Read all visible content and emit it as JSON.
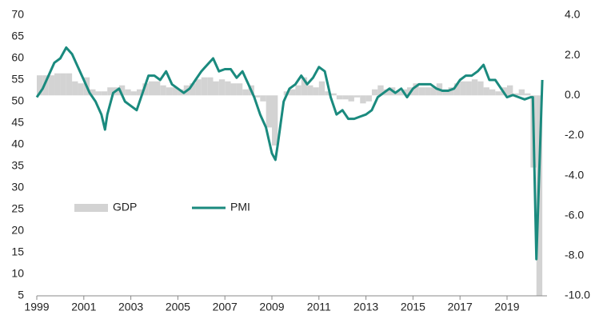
{
  "chart_data": {
    "type": "bar_line",
    "xlim": [
      1999,
      2020.7
    ],
    "xticks": [
      1999,
      2001,
      2003,
      2005,
      2007,
      2009,
      2011,
      2013,
      2015,
      2017,
      2019
    ],
    "ylim": [
      5,
      70
    ],
    "yticks": [
      5,
      10,
      15,
      20,
      25,
      30,
      35,
      40,
      45,
      50,
      55,
      60,
      65,
      70
    ],
    "y2lim": [
      -10,
      4
    ],
    "y2ticks": [
      {
        "value": -10,
        "label": "-10.0"
      },
      {
        "value": -8,
        "label": "-8.0"
      },
      {
        "value": -6,
        "label": "-6.0"
      },
      {
        "value": -4,
        "label": "-4.0"
      },
      {
        "value": -2,
        "label": "-2.0"
      },
      {
        "value": 0,
        "label": "0.0"
      },
      {
        "value": 2,
        "label": "2.0"
      },
      {
        "value": 4,
        "label": "4.0"
      }
    ],
    "legend": "center-left",
    "series": [
      {
        "name": "GDP",
        "type": "bar",
        "axis": "y2",
        "color": "#d3d3d3",
        "x": [
          1999,
          1999.25,
          1999.5,
          1999.75,
          2000,
          2000.25,
          2000.5,
          2000.75,
          2001,
          2001.25,
          2001.5,
          2001.75,
          2002,
          2002.25,
          2002.5,
          2002.75,
          2003,
          2003.25,
          2003.5,
          2003.75,
          2004,
          2004.25,
          2004.5,
          2004.75,
          2005,
          2005.25,
          2005.5,
          2005.75,
          2006,
          2006.25,
          2006.5,
          2006.75,
          2007,
          2007.25,
          2007.5,
          2007.75,
          2008,
          2008.25,
          2008.5,
          2008.75,
          2009,
          2009.25,
          2009.5,
          2009.75,
          2010,
          2010.25,
          2010.5,
          2010.75,
          2011,
          2011.25,
          2011.5,
          2011.75,
          2012,
          2012.25,
          2012.5,
          2012.75,
          2013,
          2013.25,
          2013.5,
          2013.75,
          2014,
          2014.25,
          2014.5,
          2014.75,
          2015,
          2015.25,
          2015.5,
          2015.75,
          2016,
          2016.25,
          2016.5,
          2016.75,
          2017,
          2017.25,
          2017.5,
          2017.75,
          2018,
          2018.25,
          2018.5,
          2018.75,
          2019,
          2019.25,
          2019.5,
          2019.75,
          2020,
          2020.25
        ],
        "values": [
          1.0,
          1.0,
          1.0,
          1.1,
          1.1,
          1.1,
          0.7,
          0.6,
          0.9,
          0.3,
          0.2,
          0.2,
          0.4,
          0.4,
          0.5,
          0.3,
          0.2,
          0.3,
          0.6,
          0.7,
          0.7,
          0.5,
          0.4,
          0.4,
          0.3,
          0.5,
          0.6,
          0.8,
          0.9,
          0.9,
          0.7,
          0.8,
          0.7,
          0.6,
          0.6,
          0.3,
          0.5,
          -0.1,
          -0.3,
          -1.6,
          -2.5,
          0,
          0.2,
          0.3,
          0.5,
          0.9,
          0.5,
          0.4,
          0.7,
          0.2,
          0.1,
          -0.2,
          -0.2,
          -0.3,
          -0.1,
          -0.4,
          -0.3,
          0.3,
          0.5,
          0.3,
          0.4,
          0.2,
          0.3,
          0.4,
          0.6,
          0.4,
          0.4,
          0.4,
          0.6,
          0.3,
          0.4,
          0.6,
          0.7,
          0.7,
          0.8,
          0.7,
          0.4,
          0.3,
          0.2,
          0.4,
          0.5,
          0.1,
          0.3,
          0.1,
          -3.6,
          -10
        ]
      },
      {
        "name": "PMI",
        "type": "line",
        "axis": "y",
        "color": "#1a8a7e",
        "x": [
          1999,
          1999.25,
          1999.5,
          1999.75,
          2000,
          2000.25,
          2000.5,
          2000.75,
          2001,
          2001.25,
          2001.5,
          2001.75,
          2001.9,
          2002,
          2002.25,
          2002.5,
          2002.75,
          2003,
          2003.25,
          2003.5,
          2003.75,
          2004,
          2004.25,
          2004.5,
          2004.75,
          2005,
          2005.25,
          2005.5,
          2005.75,
          2006,
          2006.25,
          2006.5,
          2006.75,
          2007,
          2007.25,
          2007.5,
          2007.75,
          2008,
          2008.25,
          2008.5,
          2008.75,
          2009,
          2009.15,
          2009.25,
          2009.5,
          2009.75,
          2010,
          2010.25,
          2010.5,
          2010.75,
          2011,
          2011.25,
          2011.5,
          2011.75,
          2012,
          2012.25,
          2012.5,
          2012.75,
          2013,
          2013.25,
          2013.5,
          2013.75,
          2014,
          2014.25,
          2014.5,
          2014.75,
          2015,
          2015.25,
          2015.5,
          2015.75,
          2016,
          2016.25,
          2016.5,
          2016.75,
          2017,
          2017.25,
          2017.5,
          2017.75,
          2018,
          2018.25,
          2018.5,
          2018.75,
          2019,
          2019.25,
          2019.5,
          2019.75,
          2020,
          2020.1,
          2020.25,
          2020.5
        ],
        "values": [
          51,
          53,
          56,
          59,
          60,
          62.5,
          61,
          58,
          55,
          52,
          50,
          47,
          43.5,
          47,
          52,
          53,
          50,
          49,
          48,
          52,
          56,
          56,
          55,
          57,
          54,
          53,
          52,
          53,
          55,
          57,
          58.5,
          60,
          57,
          57.5,
          57.5,
          55.5,
          57,
          54,
          51,
          47,
          44,
          38,
          36.5,
          40,
          50,
          53,
          54,
          56,
          54,
          55.5,
          58,
          57,
          51,
          47,
          48,
          46,
          46,
          46.5,
          47,
          48,
          51,
          52,
          53,
          52,
          53,
          51,
          53,
          54,
          54,
          54,
          53,
          52.5,
          52.5,
          53,
          55,
          56,
          56,
          57,
          58.5,
          55,
          55,
          53,
          51,
          51.5,
          51,
          50.5,
          51,
          51,
          13.5,
          55
        ]
      }
    ]
  }
}
